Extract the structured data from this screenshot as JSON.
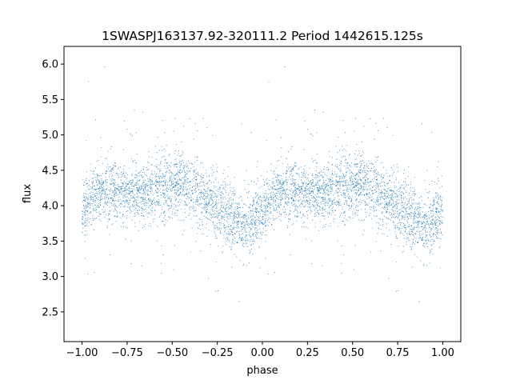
{
  "chart_data": {
    "type": "scatter",
    "title": "1SWASPJ163137.92-320111.2 Period 1442615.125s",
    "xlabel": "phase",
    "ylabel": "flux",
    "xlim": [
      -1.1,
      1.1
    ],
    "ylim": [
      2.08,
      6.25
    ],
    "xticks": [
      -1.0,
      -0.75,
      -0.5,
      -0.25,
      0.0,
      0.25,
      0.5,
      0.75,
      1.0
    ],
    "xtick_labels": [
      "−1.00",
      "−0.75",
      "−0.50",
      "−0.25",
      "0.00",
      "0.25",
      "0.50",
      "0.75",
      "1.00"
    ],
    "yticks": [
      2.5,
      3.0,
      3.5,
      4.0,
      4.5,
      5.0,
      5.5,
      6.0
    ],
    "ytick_labels": [
      "2.5",
      "3.0",
      "3.5",
      "4.0",
      "4.5",
      "5.0",
      "5.5",
      "6.0"
    ],
    "grid": false,
    "marker_color": "#1f77b4",
    "light_curve_phase": [
      0.0,
      0.1,
      0.2,
      0.3,
      0.4,
      0.5,
      0.6,
      0.7,
      0.8,
      0.9,
      1.0
    ],
    "light_curve_median_flux": [
      3.95,
      4.2,
      4.2,
      4.2,
      4.2,
      4.3,
      4.3,
      4.05,
      3.85,
      3.7,
      3.95
    ],
    "approx_scatter_sigma": 0.22,
    "flux_range": [
      2.25,
      6.05
    ]
  }
}
